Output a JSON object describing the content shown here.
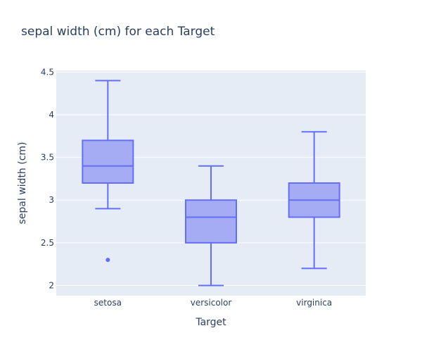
{
  "chart_data": {
    "type": "box",
    "title": "sepal width (cm) for each Target",
    "xlabel": "Target",
    "ylabel": "sepal width (cm)",
    "ylim": [
      1.88,
      4.52
    ],
    "yticks": [
      2,
      2.5,
      3,
      3.5,
      4,
      4.5
    ],
    "ytick_labels": [
      "2",
      "2.5",
      "3",
      "3.5",
      "4",
      "4.5"
    ],
    "grid": true,
    "categories": [
      "setosa",
      "versicolor",
      "virginica"
    ],
    "boxes": [
      {
        "category": "setosa",
        "min": 2.9,
        "q1": 3.2,
        "median": 3.4,
        "q3": 3.7,
        "max": 4.4,
        "outliers": [
          2.3
        ]
      },
      {
        "category": "versicolor",
        "min": 2.0,
        "q1": 2.5,
        "median": 2.8,
        "q3": 3.0,
        "max": 3.4,
        "outliers": []
      },
      {
        "category": "virginica",
        "min": 2.2,
        "q1": 2.8,
        "median": 3.0,
        "q3": 3.2,
        "max": 3.8,
        "outliers": []
      }
    ],
    "colors": {
      "plot_background": "#e5ecf6",
      "gridline": "#ffffff",
      "box_fill": "#a6acf4",
      "box_line": "#636efa",
      "text": "#2a3f5f"
    }
  }
}
